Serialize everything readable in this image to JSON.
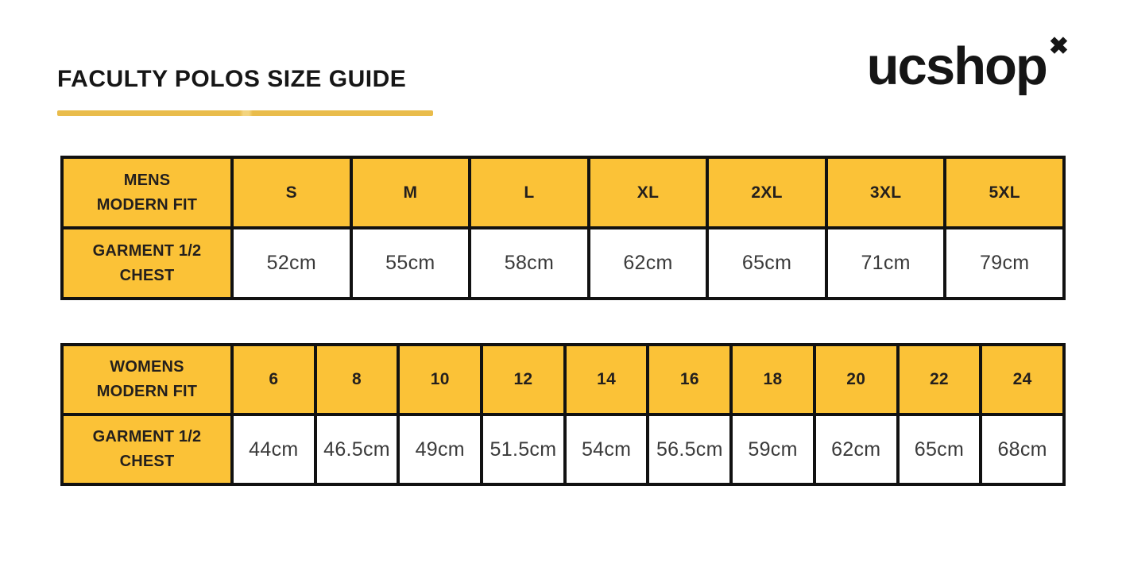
{
  "header": {
    "title": "FACULTY POLOS SIZE GUIDE",
    "logo_text": "ucshop",
    "logo_mark": "✖"
  },
  "colors": {
    "header_yellow": "#FBC237",
    "underline_gold": "#E9BC4B",
    "table_border": "#111111",
    "header_text": "#231F1D",
    "value_text": "#3A3A3A"
  },
  "tables": [
    {
      "name": "mens",
      "fit_label": "MENS\nMODERN FIT",
      "measure_label": "GARMENT 1/2\nCHEST",
      "columns": [
        {
          "size": "S",
          "chest": "52cm"
        },
        {
          "size": "M",
          "chest": "55cm"
        },
        {
          "size": "L",
          "chest": "58cm"
        },
        {
          "size": "XL",
          "chest": "62cm"
        },
        {
          "size": "2XL",
          "chest": "65cm"
        },
        {
          "size": "3XL",
          "chest": "71cm"
        },
        {
          "size": "5XL",
          "chest": "79cm"
        }
      ]
    },
    {
      "name": "womens",
      "fit_label": "WOMENS\nMODERN FIT",
      "measure_label": "GARMENT 1/2\nCHEST",
      "columns": [
        {
          "size": "6",
          "chest": "44cm"
        },
        {
          "size": "8",
          "chest": "46.5cm"
        },
        {
          "size": "10",
          "chest": "49cm"
        },
        {
          "size": "12",
          "chest": "51.5cm"
        },
        {
          "size": "14",
          "chest": "54cm"
        },
        {
          "size": "16",
          "chest": "56.5cm"
        },
        {
          "size": "18",
          "chest": "59cm"
        },
        {
          "size": "20",
          "chest": "62cm"
        },
        {
          "size": "22",
          "chest": "65cm"
        },
        {
          "size": "24",
          "chest": "68cm"
        }
      ]
    }
  ]
}
